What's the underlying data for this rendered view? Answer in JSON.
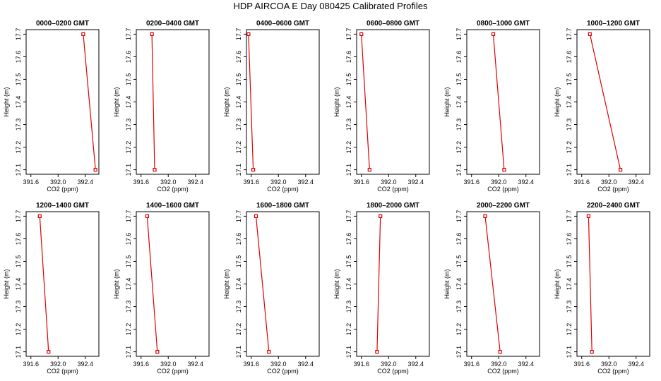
{
  "figure": {
    "title": "HDP  AIRCOA E  Day 080425  Calibrated Profiles"
  },
  "colors": {
    "series": "#e00000",
    "axis": "#000000",
    "background": "#ffffff"
  },
  "chart_data": [
    {
      "type": "line",
      "title": "0000–0200 GMT",
      "xlabel": "CO2 (ppm)",
      "ylabel": "Height (m)",
      "x": [
        392.37,
        392.55
      ],
      "y": [
        17.7,
        17.1
      ],
      "xlim": [
        391.53,
        392.6
      ],
      "ylim": [
        17.08,
        17.72
      ],
      "grid": false,
      "xticks": [
        391.6,
        392.0,
        392.4
      ],
      "xtick_labels": [
        "391.6",
        "392.0",
        "392.4"
      ],
      "yticks": [
        17.1,
        17.2,
        17.3,
        17.4,
        17.5,
        17.6,
        17.7
      ],
      "ytick_labels": [
        "17.1",
        "17.2",
        "17.3",
        "17.4",
        "17.5",
        "17.6",
        "17.7"
      ]
    },
    {
      "type": "line",
      "title": "0200–0400 GMT",
      "xlabel": "CO2 (ppm)",
      "ylabel": "Height (m)",
      "x": [
        391.76,
        391.8
      ],
      "y": [
        17.7,
        17.1
      ],
      "xlim": [
        391.53,
        392.6
      ],
      "ylim": [
        17.08,
        17.72
      ],
      "grid": false,
      "xticks": [
        391.6,
        392.0,
        392.4
      ],
      "xtick_labels": [
        "391.6",
        "392.0",
        "392.4"
      ],
      "yticks": [
        17.1,
        17.2,
        17.3,
        17.4,
        17.5,
        17.6,
        17.7
      ],
      "ytick_labels": [
        "17.1",
        "17.2",
        "17.3",
        "17.4",
        "17.5",
        "17.6",
        "17.7"
      ]
    },
    {
      "type": "line",
      "title": "0400–0600 GMT",
      "xlabel": "CO2 (ppm)",
      "ylabel": "Height (m)",
      "x": [
        391.56,
        391.63
      ],
      "y": [
        17.7,
        17.1
      ],
      "xlim": [
        391.53,
        392.6
      ],
      "ylim": [
        17.08,
        17.72
      ],
      "grid": false,
      "xticks": [
        391.6,
        392.0,
        392.4
      ],
      "xtick_labels": [
        "391.6",
        "392.0",
        "392.4"
      ],
      "yticks": [
        17.1,
        17.2,
        17.3,
        17.4,
        17.5,
        17.6,
        17.7
      ],
      "ytick_labels": [
        "17.1",
        "17.2",
        "17.3",
        "17.4",
        "17.5",
        "17.6",
        "17.7"
      ]
    },
    {
      "type": "line",
      "title": "0600–0800 GMT",
      "xlabel": "CO2 (ppm)",
      "ylabel": "Height (m)",
      "x": [
        391.6,
        391.72
      ],
      "y": [
        17.7,
        17.1
      ],
      "xlim": [
        391.53,
        392.6
      ],
      "ylim": [
        17.08,
        17.72
      ],
      "grid": false,
      "xticks": [
        391.6,
        392.0,
        392.4
      ],
      "xtick_labels": [
        "391.6",
        "392.0",
        "392.4"
      ],
      "yticks": [
        17.1,
        17.2,
        17.3,
        17.4,
        17.5,
        17.6,
        17.7
      ],
      "ytick_labels": [
        "17.1",
        "17.2",
        "17.3",
        "17.4",
        "17.5",
        "17.6",
        "17.7"
      ]
    },
    {
      "type": "line",
      "title": "0800–1000 GMT",
      "xlabel": "CO2 (ppm)",
      "ylabel": "Height (m)",
      "x": [
        391.92,
        392.08
      ],
      "y": [
        17.7,
        17.1
      ],
      "xlim": [
        391.53,
        392.6
      ],
      "ylim": [
        17.08,
        17.72
      ],
      "grid": false,
      "xticks": [
        391.6,
        392.0,
        392.4
      ],
      "xtick_labels": [
        "391.6",
        "392.0",
        "392.4"
      ],
      "yticks": [
        17.1,
        17.2,
        17.3,
        17.4,
        17.5,
        17.6,
        17.7
      ],
      "ytick_labels": [
        "17.1",
        "17.2",
        "17.3",
        "17.4",
        "17.5",
        "17.6",
        "17.7"
      ]
    },
    {
      "type": "line",
      "title": "1000–1200 GMT",
      "xlabel": "CO2 (ppm)",
      "ylabel": "Height (m)",
      "x": [
        391.72,
        392.17
      ],
      "y": [
        17.7,
        17.1
      ],
      "xlim": [
        391.53,
        392.6
      ],
      "ylim": [
        17.08,
        17.72
      ],
      "grid": false,
      "xticks": [
        391.6,
        392.0,
        392.4
      ],
      "xtick_labels": [
        "391.6",
        "392.0",
        "392.4"
      ],
      "yticks": [
        17.1,
        17.2,
        17.3,
        17.4,
        17.5,
        17.6,
        17.7
      ],
      "ytick_labels": [
        "17.1",
        "17.2",
        "17.3",
        "17.4",
        "17.5",
        "17.6",
        "17.7"
      ]
    },
    {
      "type": "line",
      "title": "1200–1400 GMT",
      "xlabel": "CO2 (ppm)",
      "ylabel": "Height (m)",
      "x": [
        391.73,
        391.86
      ],
      "y": [
        17.7,
        17.1
      ],
      "xlim": [
        391.53,
        392.6
      ],
      "ylim": [
        17.08,
        17.72
      ],
      "grid": false,
      "xticks": [
        391.6,
        392.0,
        392.4
      ],
      "xtick_labels": [
        "391.6",
        "392.0",
        "392.4"
      ],
      "yticks": [
        17.1,
        17.2,
        17.3,
        17.4,
        17.5,
        17.6,
        17.7
      ],
      "ytick_labels": [
        "17.1",
        "17.2",
        "17.3",
        "17.4",
        "17.5",
        "17.6",
        "17.7"
      ]
    },
    {
      "type": "line",
      "title": "1400–1600 GMT",
      "xlabel": "CO2 (ppm)",
      "ylabel": "Height (m)",
      "x": [
        391.69,
        391.84
      ],
      "y": [
        17.7,
        17.1
      ],
      "xlim": [
        391.53,
        392.6
      ],
      "ylim": [
        17.08,
        17.72
      ],
      "grid": false,
      "xticks": [
        391.6,
        392.0,
        392.4
      ],
      "xtick_labels": [
        "391.6",
        "392.0",
        "392.4"
      ],
      "yticks": [
        17.1,
        17.2,
        17.3,
        17.4,
        17.5,
        17.6,
        17.7
      ],
      "ytick_labels": [
        "17.1",
        "17.2",
        "17.3",
        "17.4",
        "17.5",
        "17.6",
        "17.7"
      ]
    },
    {
      "type": "line",
      "title": "1600–1800 GMT",
      "xlabel": "CO2 (ppm)",
      "ylabel": "Height (m)",
      "x": [
        391.67,
        391.86
      ],
      "y": [
        17.7,
        17.1
      ],
      "xlim": [
        391.53,
        392.6
      ],
      "ylim": [
        17.08,
        17.72
      ],
      "grid": false,
      "xticks": [
        391.6,
        392.0,
        392.4
      ],
      "xtick_labels": [
        "391.6",
        "392.0",
        "392.4"
      ],
      "yticks": [
        17.1,
        17.2,
        17.3,
        17.4,
        17.5,
        17.6,
        17.7
      ],
      "ytick_labels": [
        "17.1",
        "17.2",
        "17.3",
        "17.4",
        "17.5",
        "17.6",
        "17.7"
      ]
    },
    {
      "type": "line",
      "title": "1800–2000 GMT",
      "xlabel": "CO2 (ppm)",
      "ylabel": "Height (m)",
      "x": [
        391.88,
        391.83
      ],
      "y": [
        17.7,
        17.1
      ],
      "xlim": [
        391.53,
        392.6
      ],
      "ylim": [
        17.08,
        17.72
      ],
      "grid": false,
      "xticks": [
        391.6,
        392.0,
        392.4
      ],
      "xtick_labels": [
        "391.6",
        "392.0",
        "392.4"
      ],
      "yticks": [
        17.1,
        17.2,
        17.3,
        17.4,
        17.5,
        17.6,
        17.7
      ],
      "ytick_labels": [
        "17.1",
        "17.2",
        "17.3",
        "17.4",
        "17.5",
        "17.6",
        "17.7"
      ]
    },
    {
      "type": "line",
      "title": "2000–2200 GMT",
      "xlabel": "CO2 (ppm)",
      "ylabel": "Height (m)",
      "x": [
        391.8,
        392.02
      ],
      "y": [
        17.7,
        17.1
      ],
      "xlim": [
        391.53,
        392.6
      ],
      "ylim": [
        17.08,
        17.72
      ],
      "grid": false,
      "xticks": [
        391.6,
        392.0,
        392.4
      ],
      "xtick_labels": [
        "391.6",
        "392.0",
        "392.4"
      ],
      "yticks": [
        17.1,
        17.2,
        17.3,
        17.4,
        17.5,
        17.6,
        17.7
      ],
      "ytick_labels": [
        "17.1",
        "17.2",
        "17.3",
        "17.4",
        "17.5",
        "17.6",
        "17.7"
      ]
    },
    {
      "type": "line",
      "title": "2200–2400 GMT",
      "xlabel": "CO2 (ppm)",
      "ylabel": "Height (m)",
      "x": [
        391.7,
        391.75
      ],
      "y": [
        17.7,
        17.1
      ],
      "xlim": [
        391.53,
        392.6
      ],
      "ylim": [
        17.08,
        17.72
      ],
      "grid": false,
      "xticks": [
        391.6,
        392.0,
        392.4
      ],
      "xtick_labels": [
        "391.6",
        "392.0",
        "392.4"
      ],
      "yticks": [
        17.1,
        17.2,
        17.3,
        17.4,
        17.5,
        17.6,
        17.7
      ],
      "ytick_labels": [
        "17.1",
        "17.2",
        "17.3",
        "17.4",
        "17.5",
        "17.6",
        "17.7"
      ]
    }
  ]
}
